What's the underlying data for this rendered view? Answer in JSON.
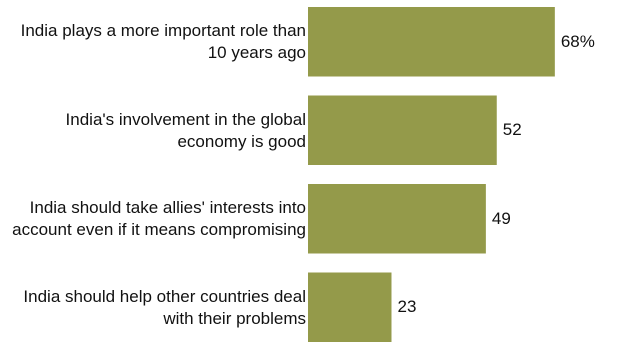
{
  "chart_data": {
    "type": "bar",
    "orientation": "horizontal",
    "categories": [
      "India plays a more important role than 10 years ago",
      "India's involvement in the global economy is good",
      "India should take allies' interests into account even if it means compromising",
      "India should help other countries deal with their problems"
    ],
    "values": [
      68,
      52,
      49,
      23
    ],
    "value_labels": [
      "68%",
      "52",
      "49",
      "23"
    ],
    "color": "#949a4a"
  }
}
